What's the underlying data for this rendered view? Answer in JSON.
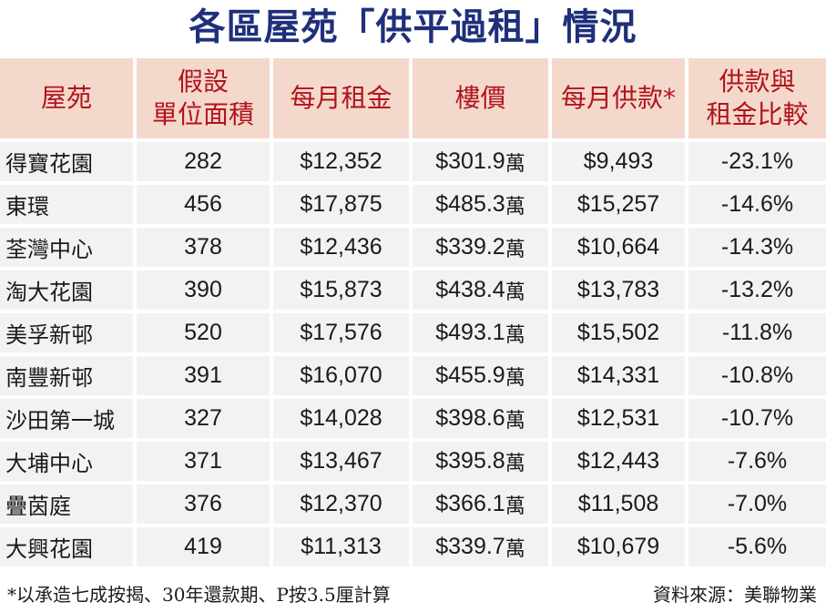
{
  "chart_data": {
    "type": "table",
    "title": "各區屋苑「供平過租」情況",
    "columns": [
      {
        "line1": "屋苑",
        "line2": ""
      },
      {
        "line1": "假設",
        "line2": "單位面積"
      },
      {
        "line1": "每月租金",
        "line2": ""
      },
      {
        "line1": "樓價",
        "line2": ""
      },
      {
        "line1": "每月供款*",
        "line2": ""
      },
      {
        "line1": "供款與",
        "line2": "租金比較"
      }
    ],
    "unit_wan": "萬",
    "rows": [
      {
        "estate": "得寶花園",
        "area": "282",
        "rent": "$12,352",
        "price": "$301.9",
        "mortgage": "$9,493",
        "diff": "-23.1%"
      },
      {
        "estate": "東環",
        "area": "456",
        "rent": "$17,875",
        "price": "$485.3",
        "mortgage": "$15,257",
        "diff": "-14.6%"
      },
      {
        "estate": "荃灣中心",
        "area": "378",
        "rent": "$12,436",
        "price": "$339.2",
        "mortgage": "$10,664",
        "diff": "-14.3%"
      },
      {
        "estate": "淘大花園",
        "area": "390",
        "rent": "$15,873",
        "price": "$438.4",
        "mortgage": "$13,783",
        "diff": "-13.2%"
      },
      {
        "estate": "美孚新邨",
        "area": "520",
        "rent": "$17,576",
        "price": "$493.1",
        "mortgage": "$15,502",
        "diff": "-11.8%"
      },
      {
        "estate": "南豐新邨",
        "area": "391",
        "rent": "$16,070",
        "price": "$455.9",
        "mortgage": "$14,331",
        "diff": "-10.8%"
      },
      {
        "estate": "沙田第一城",
        "area": "327",
        "rent": "$14,028",
        "price": "$398.6",
        "mortgage": "$12,531",
        "diff": "-10.7%"
      },
      {
        "estate": "大埔中心",
        "area": "371",
        "rent": "$13,467",
        "price": "$395.8",
        "mortgage": "$12,443",
        "diff": "-7.6%"
      },
      {
        "estate": "疊茵庭",
        "area": "376",
        "rent": "$12,370",
        "price": "$366.1",
        "mortgage": "$11,508",
        "diff": "-7.0%"
      },
      {
        "estate": "大興花園",
        "area": "419",
        "rent": "$11,313",
        "price": "$339.7",
        "mortgage": "$10,679",
        "diff": "-5.6%"
      }
    ],
    "footnote": "*以承造七成按揭、30年還款期、P按3.5厘計算",
    "source": "資料來源：美聯物業"
  },
  "colors": {
    "title": "#1f2f7a",
    "header_bg": "#f5d8cc",
    "header_text": "#b0141e",
    "row_bg": "#f2f2f2"
  }
}
